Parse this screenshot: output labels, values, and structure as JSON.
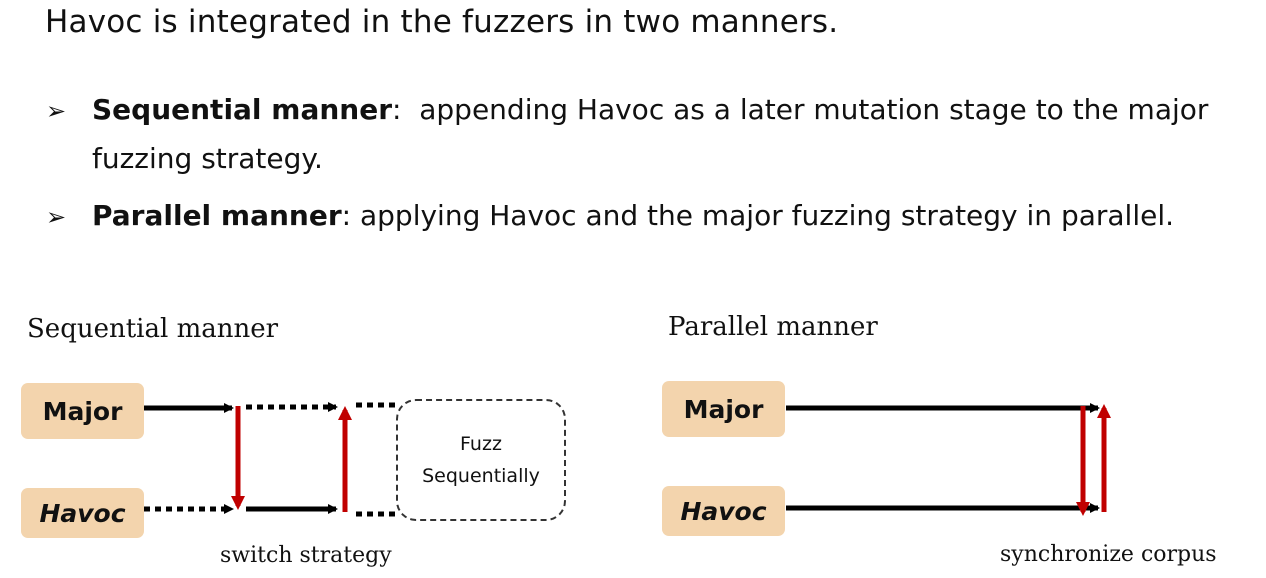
{
  "title": "Havoc is integrated in the fuzzers in two manners.",
  "bullets": [
    {
      "glyph": "➢",
      "key": "Sequential manner",
      "sep": ":  ",
      "text": "appending Havoc as a later mutation stage to the major",
      "cont": "fuzzing strategy."
    },
    {
      "glyph": "➢",
      "key": "Parallel manner",
      "sep": ": ",
      "text": "applying Havoc and the major fuzzing strategy in parallel."
    }
  ],
  "sequential": {
    "caption": "Sequential manner",
    "major_label": "Major",
    "havoc_label": "Havoc",
    "fuzz_line1": "Fuzz",
    "fuzz_line2": "Sequentially",
    "bottom_caption": "switch strategy"
  },
  "parallel": {
    "caption": "Parallel manner",
    "major_label": "Major",
    "havoc_label": "Havoc",
    "bottom_caption": "synchronize corpus"
  },
  "colors": {
    "box_fill": "#f3d4ad",
    "red_arrow": "#c00000",
    "black_arrow": "#000000"
  }
}
